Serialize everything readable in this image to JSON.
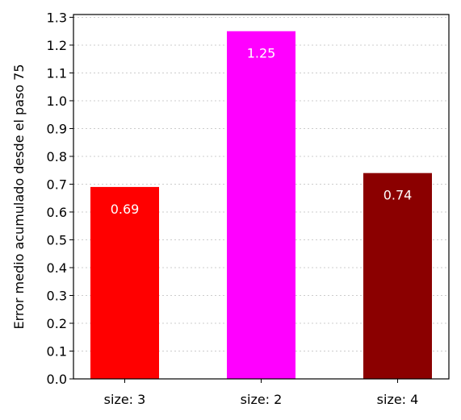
{
  "chart_data": {
    "type": "bar",
    "categories": [
      "size: 3",
      "size: 2",
      "size: 4"
    ],
    "values": [
      0.69,
      1.25,
      0.74
    ],
    "data_labels": [
      "0.69",
      "1.25",
      "0.74"
    ],
    "colors": [
      "#ff0000",
      "#ff00ff",
      "#8b0000"
    ],
    "ylabel": "Error medio acumulado desde el paso 75",
    "xlabel": "",
    "ylim": [
      0,
      1.31
    ],
    "yticks": [
      0.0,
      0.1,
      0.2,
      0.3,
      0.4,
      0.5,
      0.6,
      0.7,
      0.8,
      0.9,
      1.0,
      1.1,
      1.2,
      1.3
    ],
    "ytick_labels": [
      "0.0",
      "0.1",
      "0.2",
      "0.3",
      "0.4",
      "0.5",
      "0.6",
      "0.7",
      "0.8",
      "0.9",
      "1.0",
      "1.1",
      "1.2",
      "1.3"
    ],
    "grid": "y-dotted",
    "legend": "none"
  }
}
